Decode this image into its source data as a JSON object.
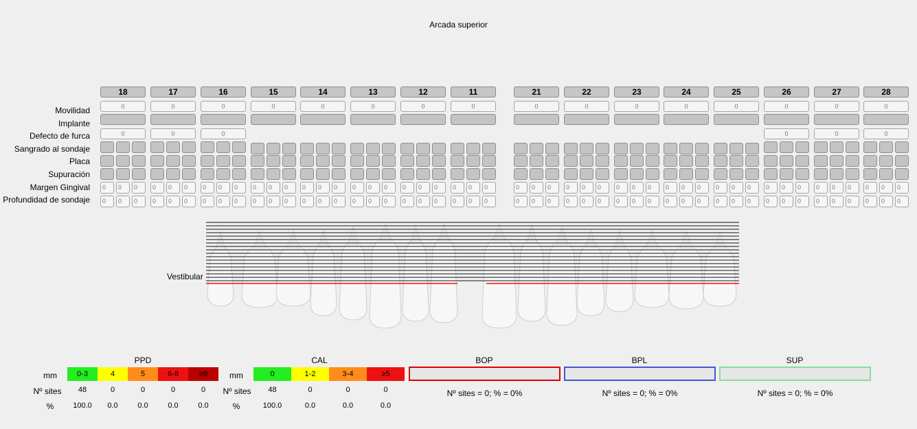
{
  "title": "Arcada superior",
  "row_labels": {
    "movilidad": "Movilidad",
    "implante": "Implante",
    "defecto": "Defecto de furca",
    "sangrado": "Sangrado al sondaje",
    "placa": "Placa",
    "supuracion": "Supuración",
    "margen": "Margen Gingival",
    "profundidad": "Profundidad de sondaje"
  },
  "teeth": [
    {
      "num": "18",
      "movilidad": "0",
      "furca": "0"
    },
    {
      "num": "17",
      "movilidad": "0",
      "furca": "0"
    },
    {
      "num": "16",
      "movilidad": "0",
      "furca": "0"
    },
    {
      "num": "15",
      "movilidad": "0",
      "furca": ""
    },
    {
      "num": "14",
      "movilidad": "0",
      "furca": ""
    },
    {
      "num": "13",
      "movilidad": "0",
      "furca": ""
    },
    {
      "num": "12",
      "movilidad": "0",
      "furca": ""
    },
    {
      "num": "11",
      "movilidad": "0",
      "furca": ""
    },
    {
      "num": "21",
      "movilidad": "0",
      "furca": ""
    },
    {
      "num": "22",
      "movilidad": "0",
      "furca": ""
    },
    {
      "num": "23",
      "movilidad": "0",
      "furca": ""
    },
    {
      "num": "24",
      "movilidad": "0",
      "furca": ""
    },
    {
      "num": "25",
      "movilidad": "0",
      "furca": ""
    },
    {
      "num": "26",
      "movilidad": "0",
      "furca": "0"
    },
    {
      "num": "27",
      "movilidad": "0",
      "furca": "0"
    },
    {
      "num": "28",
      "movilidad": "0",
      "furca": "0"
    }
  ],
  "site_value": "0",
  "vestibular_label": "Vestibular",
  "ppd": {
    "title": "PPD",
    "mm_label": "mm",
    "sites_label": "Nº sites",
    "pct_label": "%",
    "ranges": [
      {
        "label": "0-3",
        "color": "#22ee22",
        "sites": "48",
        "pct": "100.0"
      },
      {
        "label": "4",
        "color": "#ffff00",
        "sites": "0",
        "pct": "0.0"
      },
      {
        "label": "5",
        "color": "#ff8c1a",
        "sites": "0",
        "pct": "0.0"
      },
      {
        "label": "6-8",
        "color": "#ee1111",
        "sites": "0",
        "pct": "0.0"
      },
      {
        "label": "≥9",
        "color": "#bb0000",
        "sites": "0",
        "pct": "0.0"
      }
    ]
  },
  "cal": {
    "title": "CAL",
    "mm_label": "mm",
    "sites_label": "Nº sites",
    "pct_label": "%",
    "ranges": [
      {
        "label": "0",
        "color": "#22ee22",
        "sites": "48",
        "pct": "100.0"
      },
      {
        "label": "1-2",
        "color": "#ffff00",
        "sites": "0",
        "pct": "0.0"
      },
      {
        "label": "3-4",
        "color": "#ff8c1a",
        "sites": "0",
        "pct": "0.0"
      },
      {
        "label": "≥5",
        "color": "#ee1111",
        "sites": "0",
        "pct": "0.0"
      }
    ]
  },
  "bop": {
    "title": "BOP",
    "text": "Nº sites = 0; % = 0%",
    "color": "#dd0000"
  },
  "bpl": {
    "title": "BPL",
    "text": "Nº sites = 0; % = 0%",
    "color": "#4455dd"
  },
  "sup": {
    "title": "SUP",
    "text": "Nº sites = 0; % = 0%",
    "color": "#88dd99"
  }
}
